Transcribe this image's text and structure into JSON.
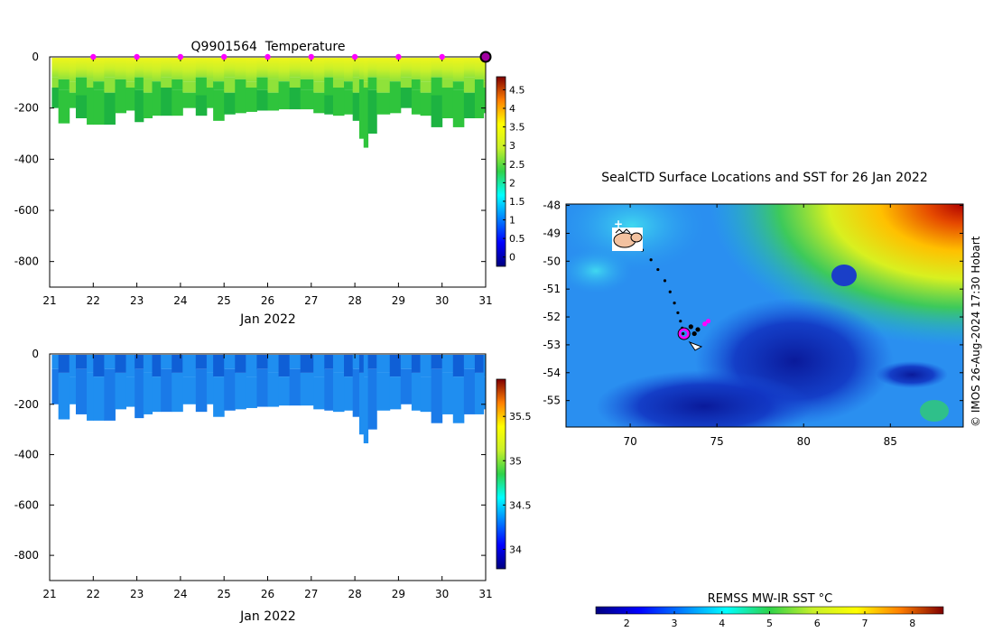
{
  "colors": {
    "temp_surface": "#e9f41c",
    "temp_yellow": "#c8f02a",
    "temp_light_green": "#8fe23a",
    "temp_green": "#2fc43c",
    "temp_dark_green": "#1db341",
    "salt_light": "#1f8ef0",
    "salt_dark": "#0f5fd6",
    "marker": "#ff00ff",
    "track": "#000000"
  },
  "chart_data": [
    {
      "id": "temperature",
      "type": "heatmap",
      "title": "Q9901564  Temperature",
      "xlabel": "Jan 2022",
      "ylabel": "",
      "x": [
        "21",
        "22",
        "23",
        "24",
        "25",
        "26",
        "27",
        "28",
        "29",
        "30",
        "31"
      ],
      "xlim": [
        21,
        31
      ],
      "y_ticks": [
        "0",
        "-200",
        "-400",
        "-600",
        "-800"
      ],
      "y_tick_values": [
        0,
        -200,
        -400,
        -600,
        -800
      ],
      "ylim": [
        -900,
        0
      ],
      "daily_marker_days": [
        22,
        23,
        24,
        25,
        26,
        27,
        28,
        29,
        30
      ],
      "latest_marker_day": 31,
      "profile_times": [
        21.05,
        21.2,
        21.45,
        21.6,
        21.85,
        22.0,
        22.25,
        22.5,
        22.75,
        22.95,
        23.15,
        23.35,
        23.55,
        23.8,
        24.05,
        24.35,
        24.6,
        24.75,
        25.0,
        25.25,
        25.5,
        25.75,
        26.0,
        26.25,
        26.5,
        26.75,
        27.05,
        27.3,
        27.5,
        27.75,
        27.95,
        28.1,
        28.2,
        28.3,
        28.5,
        28.8,
        29.05,
        29.3,
        29.5,
        29.75,
        30.0,
        30.25,
        30.5,
        30.75,
        30.95
      ],
      "profile_max_depth": [
        200,
        260,
        200,
        240,
        265,
        265,
        265,
        220,
        210,
        255,
        240,
        230,
        230,
        230,
        200,
        230,
        200,
        250,
        225,
        220,
        215,
        210,
        210,
        205,
        205,
        205,
        220,
        225,
        230,
        225,
        250,
        320,
        355,
        300,
        225,
        220,
        200,
        225,
        230,
        275,
        240,
        275,
        240,
        240,
        220
      ],
      "colorbar": {
        "ticks": [
          "0",
          "0.5",
          "1",
          "1.5",
          "2",
          "2.5",
          "3",
          "3.5",
          "4",
          "4.5"
        ],
        "values": [
          0,
          0.5,
          1,
          1.5,
          2,
          2.5,
          3,
          3.5,
          4,
          4.5
        ],
        "range": [
          -0.25,
          4.85
        ],
        "colormap": "jet"
      }
    },
    {
      "id": "salinity",
      "type": "heatmap",
      "title": "",
      "xlabel": "Jan 2022",
      "ylabel": "",
      "x": [
        "21",
        "22",
        "23",
        "24",
        "25",
        "26",
        "27",
        "28",
        "29",
        "30",
        "31"
      ],
      "xlim": [
        21,
        31
      ],
      "y_ticks": [
        "0",
        "-200",
        "-400",
        "-600",
        "-800"
      ],
      "y_tick_values": [
        0,
        -200,
        -400,
        -600,
        -800
      ],
      "ylim": [
        -900,
        0
      ],
      "profile_max_depth_same_as": "temperature",
      "colorbar": {
        "ticks": [
          "34",
          "34.5",
          "35",
          "35.5"
        ],
        "values": [
          34,
          34.5,
          35,
          35.5
        ],
        "range": [
          33.78,
          35.92
        ],
        "colormap": "jet"
      }
    },
    {
      "id": "sst_map",
      "type": "heatmap",
      "title": "SealCTD Surface Locations and SST for 26 Jan 2022",
      "xlabel": "",
      "ylabel": "",
      "x_ticks": [
        "70",
        "75",
        "80",
        "85"
      ],
      "x_tick_values": [
        70,
        75,
        80,
        85
      ],
      "xlim": [
        66.3,
        89.2
      ],
      "y_ticks": [
        "-48",
        "-49",
        "-50",
        "-51",
        "-52",
        "-53",
        "-54",
        "-55"
      ],
      "y_tick_values": [
        -48,
        -49,
        -50,
        -51,
        -52,
        -53,
        -54,
        -55
      ],
      "ylim": [
        -55.95,
        -47.95
      ],
      "track_lon": [
        69.8,
        70.2,
        70.7,
        71.2,
        71.6,
        72.0,
        72.3,
        72.55,
        72.75,
        72.9,
        73.0,
        73.05
      ],
      "track_lat": [
        -49.15,
        -49.35,
        -49.6,
        -49.95,
        -50.3,
        -50.7,
        -51.1,
        -51.5,
        -51.85,
        -52.15,
        -52.4,
        -52.6
      ],
      "latest_position": [
        73.1,
        -52.6
      ],
      "colorbar": {
        "label": "REMSS MW-IR SST °C",
        "ticks": [
          "2",
          "3",
          "4",
          "5",
          "6",
          "7",
          "8"
        ],
        "values": [
          2,
          3,
          4,
          5,
          6,
          7,
          8
        ],
        "range": [
          1.35,
          8.65
        ],
        "colormap": "jet"
      },
      "credit": "© IMOS 26-Aug-2024 17:30 Hobart"
    }
  ]
}
